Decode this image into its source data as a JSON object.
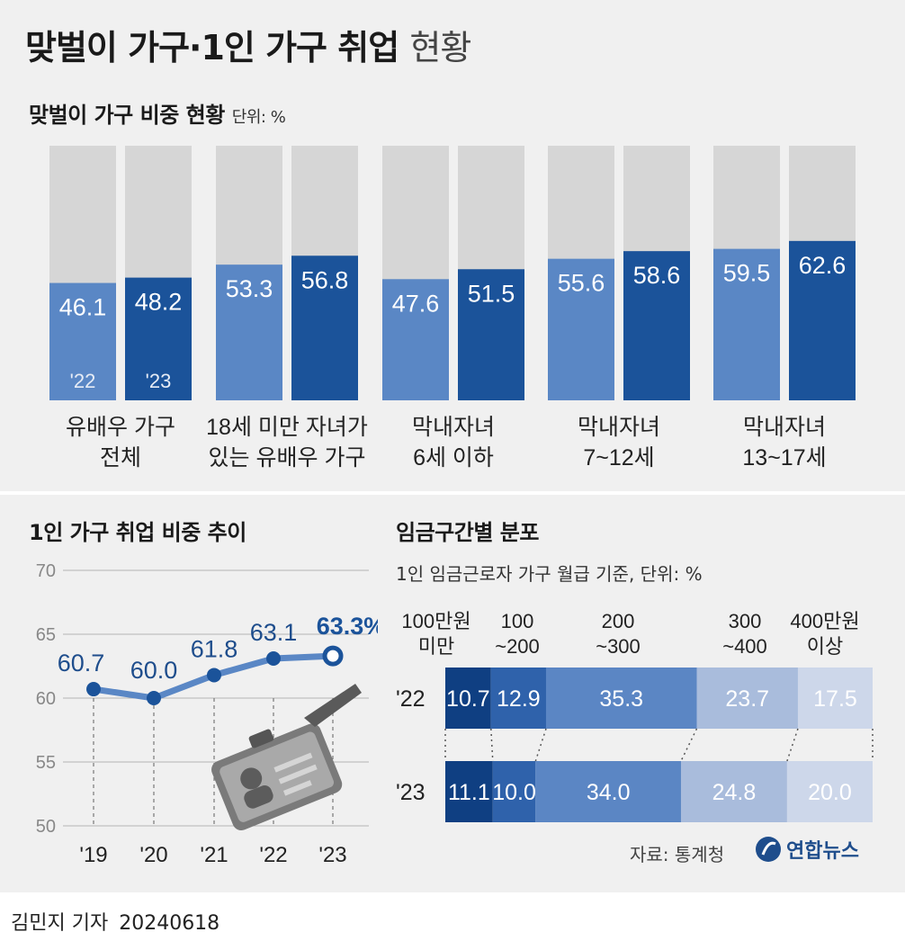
{
  "title": "맞벌이 가구·1인 가구 취업",
  "title_suffix": "현황",
  "section1": {
    "title": "맞벌이 가구 비중 현황",
    "unit": "단위: %"
  },
  "section2": {
    "title": "1인 가구 취업 비중 추이"
  },
  "section3": {
    "title": "임금구간별 분포",
    "note": "1인 임금근로자 가구 월급 기준, 단위: %"
  },
  "source": "자료: 통계청",
  "logo": "연합뉴스",
  "byline": "김민지 기자",
  "date": "20240618",
  "colors": {
    "light_blue": "#5a87c5",
    "dark_blue": "#1b539a",
    "grey": "#d6d6d6",
    "accent_line": "#5a87c5",
    "highlight_text": "#1b539a"
  },
  "chart_data": [
    {
      "type": "bar",
      "title": "맞벌이 가구 비중 현황",
      "ylim": [
        0,
        100
      ],
      "categories": [
        [
          "유배우 가구",
          "전체"
        ],
        [
          "18세 미만 자녀가",
          "있는 유배우 가구"
        ],
        [
          "막내자녀",
          "6세 이하"
        ],
        [
          "막내자녀",
          "7~12세"
        ],
        [
          "막내자녀",
          "13~17세"
        ]
      ],
      "series": [
        {
          "name": "'22",
          "values": [
            46.1,
            53.3,
            47.6,
            55.6,
            59.5
          ]
        },
        {
          "name": "'23",
          "values": [
            48.2,
            56.8,
            51.5,
            58.6,
            62.6
          ]
        }
      ]
    },
    {
      "type": "line",
      "title": "1인 가구 취업 비중 추이",
      "x": [
        "'19",
        "'20",
        "'21",
        "'22",
        "'23"
      ],
      "y": [
        60.7,
        60.0,
        61.8,
        63.1,
        63.3
      ],
      "highlight_label": "63.3%",
      "yticks": [
        70,
        65,
        60,
        55,
        50
      ],
      "ylim": [
        50,
        70
      ]
    },
    {
      "type": "bar",
      "title": "임금구간별 분포",
      "orientation": "horizontal-stacked",
      "categories": [
        [
          "100만원",
          "미만"
        ],
        [
          "100",
          "~200"
        ],
        [
          "200",
          "~300"
        ],
        [
          "300",
          "~400"
        ],
        [
          "400만원",
          "이상"
        ]
      ],
      "series": [
        {
          "name": "'22",
          "values": [
            10.7,
            12.9,
            35.3,
            23.7,
            17.5
          ]
        },
        {
          "name": "'23",
          "values": [
            11.1,
            10.0,
            34.0,
            24.8,
            20.0
          ]
        }
      ],
      "segment_colors": [
        "#0f3f82",
        "#2f62ab",
        "#5b86c4",
        "#a9bcdc",
        "#cdd7ea"
      ]
    }
  ]
}
